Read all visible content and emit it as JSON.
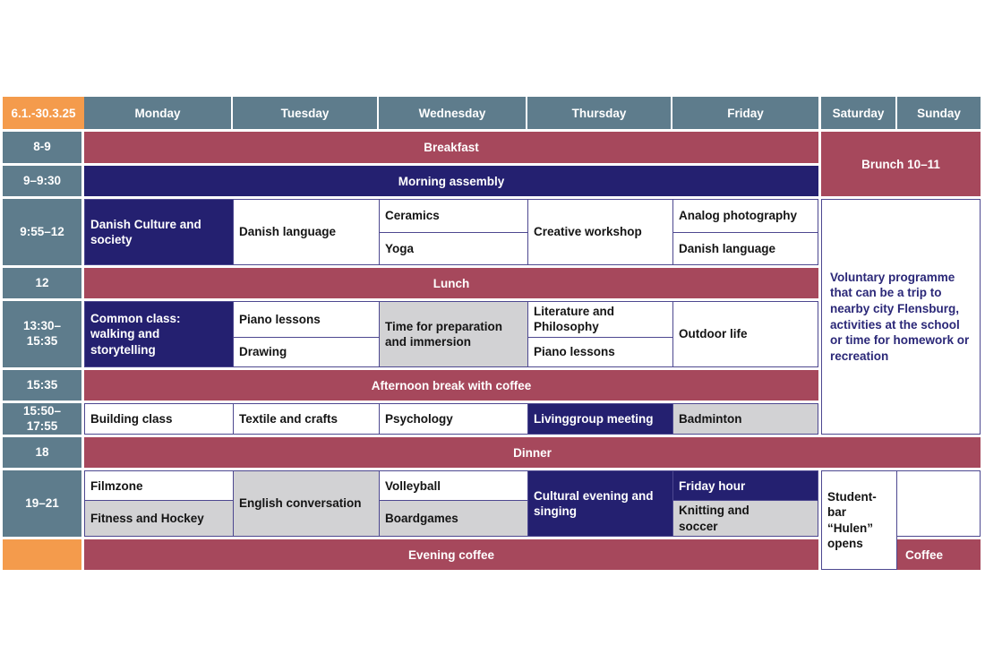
{
  "colors": {
    "orange": "#F49B4C",
    "slate_header": "#5E7C8C",
    "maroon_band": "#A6485C",
    "navy_band": "#242070",
    "gray_cell": "#D2D2D4",
    "grid_line": "#4D4890",
    "note_text": "#2B2878"
  },
  "header": {
    "date_range": "6.1.-30.3.25",
    "days": [
      "Monday",
      "Tuesday",
      "Wednesday",
      "Thursday",
      "Friday",
      "Saturday",
      "Sunday"
    ]
  },
  "times": {
    "breakfast": "8-9",
    "assembly": "9–9:30",
    "morning": "9:55–12",
    "lunch": "12",
    "afternoon": "13:30–\n15:35",
    "break": "15:35",
    "late": "15:50–\n17:55",
    "dinner": "18",
    "evening": "19–21"
  },
  "bands": {
    "breakfast": "Breakfast",
    "assembly": "Morning assembly",
    "lunch": "Lunch",
    "afternoon_break": "Afternoon break with coffee",
    "dinner": "Dinner",
    "evening_coffee": "Evening coffee"
  },
  "weekend": {
    "brunch": "Brunch 10–11",
    "note": "Voluntary programme that can be a trip to nearby city Flensburg, activities at the school or time for homework or recreation",
    "studentbar": "Student-bar “Hulen” opens",
    "sunday_coffee": "Coffee"
  },
  "schedule": {
    "morning": {
      "monday": "Danish Culture and society",
      "tuesday": "Danish language",
      "wednesday_first": "Ceramics",
      "wednesday_second": "Yoga",
      "thursday": "Creative workshop",
      "friday_first": "Analog photography",
      "friday_second": "Danish language"
    },
    "afternoon": {
      "monday": "Common class: walking and storytelling",
      "tuesday_first": "Piano lessons",
      "tuesday_second": "Drawing",
      "wednesday": "Time for preparation and immersion",
      "thursday_first": "Literature and Philosophy",
      "thursday_second": "Piano lessons",
      "friday": "Outdoor life"
    },
    "late": {
      "monday": "Building class",
      "tuesday": "Textile and crafts",
      "wednesday": "Psychology",
      "thursday": "Livinggroup meeting",
      "friday": "Badminton"
    },
    "evening": {
      "monday_first": "Filmzone",
      "monday_second": "Fitness and Hockey",
      "tuesday": "English conversation",
      "wednesday_first": "Volleyball",
      "wednesday_second": "Boardgames",
      "thursday": "Cultural evening and singing",
      "friday_first": "Friday hour",
      "friday_second": "Knitting and soccer"
    }
  }
}
